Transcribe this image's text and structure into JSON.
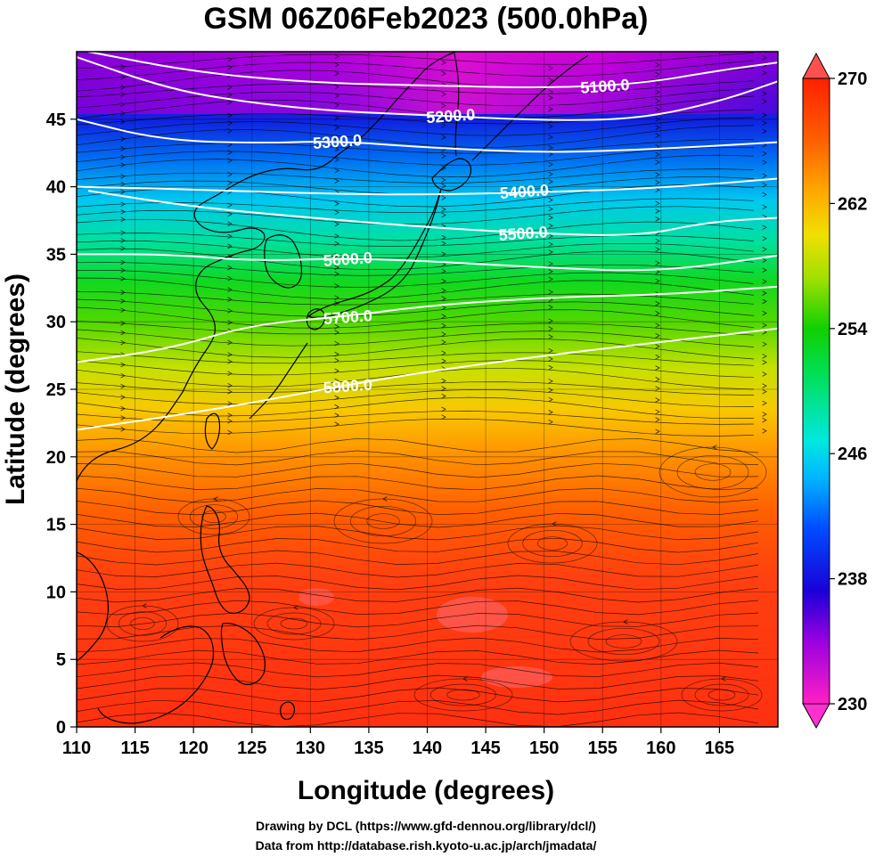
{
  "figure": {
    "title": "GSM 06Z06Feb2023 (500.0hPa)",
    "xlabel": "Longitude (degrees)",
    "ylabel": "Latitude  (degrees)",
    "credit_line1": "Drawing by DCL (https://www.gfd-dennou.org/library/dcl/)",
    "credit_line2": "Data from http://database.rish.kyoto-u.ac.jp/arch/jmadata/"
  },
  "map": {
    "lon_range": [
      110,
      170
    ],
    "lat_range": [
      0,
      50
    ],
    "x_ticks": [
      "110",
      "115",
      "120",
      "125",
      "130",
      "135",
      "140",
      "145",
      "150",
      "155",
      "160",
      "165"
    ],
    "y_ticks": [
      "0",
      "5",
      "10",
      "15",
      "20",
      "25",
      "30",
      "35",
      "40",
      "45"
    ],
    "x_tick_values": [
      110,
      115,
      120,
      125,
      130,
      135,
      140,
      145,
      150,
      155,
      160,
      165
    ],
    "y_tick_values": [
      0,
      5,
      10,
      15,
      20,
      25,
      30,
      35,
      40,
      45
    ],
    "shaded_variable_range": [
      230,
      270
    ],
    "colorbar_ticks": [
      "270",
      "262",
      "254",
      "246",
      "238",
      "230"
    ],
    "colorbar_tick_values": [
      270,
      262,
      254,
      246,
      238,
      230
    ],
    "contours": [
      {
        "label": "5100.0",
        "label_lon": 155.2,
        "label_lat": 47.5,
        "points": [
          [
            111,
            50
          ],
          [
            120,
            48.5
          ],
          [
            130,
            47.7
          ],
          [
            140,
            47.5
          ],
          [
            150,
            47.3
          ],
          [
            158,
            47.6
          ],
          [
            165,
            48.6
          ],
          [
            170,
            49.2
          ]
        ]
      },
      {
        "label": "5200.0",
        "label_lon": 142.0,
        "label_lat": 45.3,
        "points": [
          [
            110,
            49.6
          ],
          [
            118,
            47.2
          ],
          [
            125,
            46.2
          ],
          [
            132,
            45.6
          ],
          [
            140,
            45.3
          ],
          [
            150,
            44.9
          ],
          [
            158,
            45.0
          ],
          [
            165,
            46.3
          ],
          [
            170,
            47.8
          ]
        ]
      },
      {
        "label": "5300.0",
        "label_lon": 132.3,
        "label_lat": 43.4,
        "points": [
          [
            110,
            45.0
          ],
          [
            117,
            43.5
          ],
          [
            125,
            43.2
          ],
          [
            132,
            43.4
          ],
          [
            140,
            42.9
          ],
          [
            150,
            42.5
          ],
          [
            160,
            42.8
          ],
          [
            170,
            43.3
          ]
        ]
      },
      {
        "label": "5400.0",
        "label_lon": 148.3,
        "label_lat": 39.7,
        "points": [
          [
            110,
            40.0
          ],
          [
            120,
            39.8
          ],
          [
            130,
            39.5
          ],
          [
            140,
            39.4
          ],
          [
            150,
            39.6
          ],
          [
            160,
            39.9
          ],
          [
            170,
            40.6
          ]
        ]
      },
      {
        "label": "5500.0",
        "label_lon": 148.2,
        "label_lat": 36.6,
        "points": [
          [
            111,
            39.7
          ],
          [
            120,
            38.5
          ],
          [
            130,
            37.7
          ],
          [
            140,
            37.0
          ],
          [
            148,
            36.6
          ],
          [
            158,
            36.3
          ],
          [
            164,
            37.4
          ],
          [
            170,
            37.7
          ]
        ]
      },
      {
        "label": "5600.0",
        "label_lon": 133.2,
        "label_lat": 34.7,
        "points": [
          [
            110,
            35.0
          ],
          [
            118,
            35.0
          ],
          [
            125,
            34.5
          ],
          [
            133,
            34.7
          ],
          [
            140,
            34.5
          ],
          [
            150,
            34.0
          ],
          [
            160,
            33.7
          ],
          [
            170,
            34.9
          ]
        ]
      },
      {
        "label": "5700.0",
        "label_lon": 133.2,
        "label_lat": 30.4,
        "points": [
          [
            110,
            27.0
          ],
          [
            118,
            28.0
          ],
          [
            125,
            29.8
          ],
          [
            133,
            30.4
          ],
          [
            140,
            31.2
          ],
          [
            150,
            31.8
          ],
          [
            160,
            32.0
          ],
          [
            170,
            32.6
          ]
        ]
      },
      {
        "label": "5800.0",
        "label_lon": 133.2,
        "label_lat": 25.3,
        "points": [
          [
            110,
            22.0
          ],
          [
            118,
            23.0
          ],
          [
            125,
            24.0
          ],
          [
            133,
            25.3
          ],
          [
            140,
            26.3
          ],
          [
            150,
            27.5
          ],
          [
            160,
            28.5
          ],
          [
            170,
            29.5
          ]
        ]
      }
    ]
  },
  "colors": {
    "background": "#ffffff",
    "contour": "#ffffff",
    "streamline": "#000000",
    "coast": "#000000",
    "colorscale": [
      "#ff1fc4",
      "#b000e0",
      "#5a00d8",
      "#0010e0",
      "#004cff",
      "#00a0ff",
      "#00e6e6",
      "#00e070",
      "#00d000",
      "#80e000",
      "#e8e800",
      "#ffb000",
      "#ff7000",
      "#ff4000",
      "#ff1a00",
      "#ff5050"
    ]
  }
}
